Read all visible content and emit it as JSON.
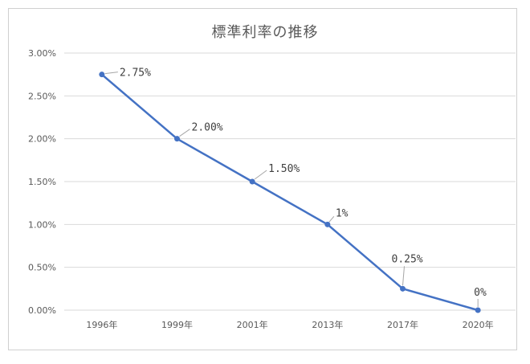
{
  "chart_data": {
    "type": "line",
    "title": "標準利率の推移",
    "categories": [
      "1996年",
      "1999年",
      "2001年",
      "2013年",
      "2017年",
      "2020年"
    ],
    "series": [
      {
        "values": [
          2.75,
          2.0,
          1.5,
          1.0,
          0.25,
          0.0
        ],
        "data_labels": [
          "2.75%",
          "2.00%",
          "1.50%",
          "1%",
          "0.25%",
          "0%"
        ],
        "color": "#4472c4"
      }
    ],
    "y_ticks": [
      "0.00%",
      "0.50%",
      "1.00%",
      "1.50%",
      "2.00%",
      "2.50%",
      "3.00%"
    ],
    "ylim": [
      0,
      3.0
    ],
    "grid": true,
    "legend": "none"
  }
}
